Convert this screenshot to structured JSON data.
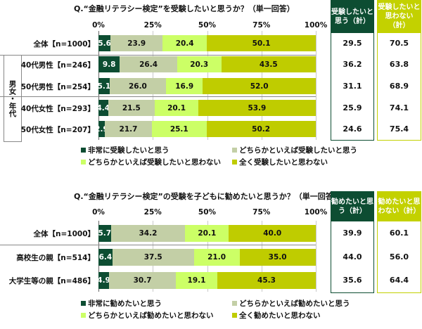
{
  "colors": [
    "#0d4d32",
    "#c3cfa6",
    "#ccff66",
    "#bfcc00"
  ],
  "chart_data": [
    {
      "type": "bar",
      "orientation": "horizontal",
      "stacked": true,
      "title": "Q.“金融リテラシー検定”を受験したいと思うか？（単一回答）",
      "ticks": [
        "0%",
        "25%",
        "50%",
        "75%",
        "100%"
      ],
      "xlim": [
        0,
        100
      ],
      "categories": [
        "全体【n=1000】",
        "40代男性【n=246】",
        "50代男性【n=254】",
        "40代女性【n=293】",
        "50代女性【n=207】"
      ],
      "group_label": "男女・年代",
      "legend": [
        "非常に受験したいと思う",
        "どちらかといえば受験したいと思う",
        "どちらかといえば受験したいと思わない",
        "全く受験したいと思わない"
      ],
      "series": [
        {
          "name": "非常に受験したいと思う",
          "values": [
            5.6,
            9.8,
            5.1,
            4.4,
            2.9
          ]
        },
        {
          "name": "どちらかといえば受験したいと思う",
          "values": [
            23.9,
            26.4,
            26.0,
            21.5,
            21.7
          ]
        },
        {
          "name": "どちらかといえば受験したいと思わない",
          "values": [
            20.4,
            20.3,
            16.9,
            20.1,
            25.1
          ]
        },
        {
          "name": "全く受験したいと思わない",
          "values": [
            50.1,
            43.5,
            52.0,
            53.9,
            50.2
          ]
        }
      ],
      "totals_headers": [
        "受験したいと思う（計）",
        "受験したいと思わない（計）"
      ],
      "totals": [
        [
          "29.5",
          "36.2",
          "31.1",
          "25.9",
          "24.6"
        ],
        [
          "70.5",
          "63.8",
          "68.9",
          "74.1",
          "75.4"
        ]
      ]
    },
    {
      "type": "bar",
      "orientation": "horizontal",
      "stacked": true,
      "title": "Q.“金融リテラシー検定”の受験を子どもに勧めたいと思うか？（単一回答）",
      "ticks": [
        "0%",
        "25%",
        "50%",
        "75%",
        "100%"
      ],
      "xlim": [
        0,
        100
      ],
      "categories": [
        "全体【n=1000】",
        "高校生の親【n=514】",
        "大学生等の親【n=486】"
      ],
      "legend": [
        "非常に勧めたいと思う",
        "どちらかといえば勧めたいと思う",
        "どちらかといえば勧めたいと思わない",
        "全く勧めたいと思わない"
      ],
      "series": [
        {
          "name": "非常に勧めたいと思う",
          "values": [
            5.7,
            6.4,
            4.9
          ]
        },
        {
          "name": "どちらかといえば勧めたいと思う",
          "values": [
            34.2,
            37.5,
            30.7
          ]
        },
        {
          "name": "どちらかといえば勧めたいと思わない",
          "values": [
            20.1,
            21.0,
            19.1
          ]
        },
        {
          "name": "全く勧めたいと思わない",
          "values": [
            40.0,
            35.0,
            45.3
          ]
        }
      ],
      "totals_headers": [
        "勧めたいと思う（計）",
        "勧めたいと思わない（計）"
      ],
      "totals": [
        [
          "39.9",
          "44.0",
          "35.6"
        ],
        [
          "60.1",
          "56.0",
          "64.4"
        ]
      ]
    }
  ]
}
